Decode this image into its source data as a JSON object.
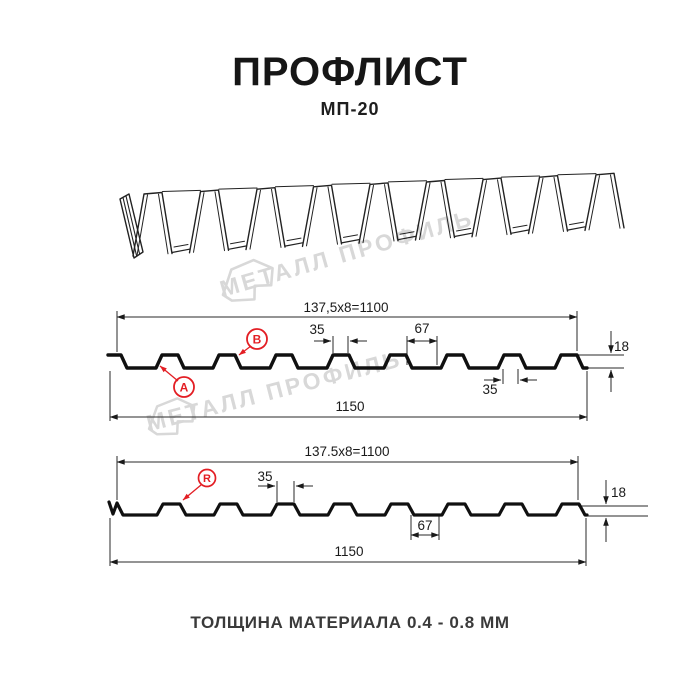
{
  "header": {
    "title": "ПРОФЛИСТ",
    "subtitle": "МП-20"
  },
  "footer": {
    "text": "ТОЛЩИНА МАТЕРИАЛА 0.4 - 0.8 ММ"
  },
  "watermark": {
    "text": "МЕТАЛЛ ПРОФИЛЬ"
  },
  "colors": {
    "accent_red": "#e31e24",
    "line_color": "#1a1a1a",
    "watermark_gray": "#d8d8d8"
  },
  "section_a": {
    "dim_pitch": "137,5x8=1100",
    "dim_rib_top": "35",
    "dim_valley": "67",
    "dim_height": "18",
    "dim_rib_top_lower": "35",
    "dim_overall": "1150",
    "marker_a": "A",
    "marker_b": "B"
  },
  "section_r": {
    "dim_pitch": "137.5x8=1100",
    "dim_rib_top": "35",
    "dim_valley": "67",
    "dim_height": "18",
    "dim_overall": "1150",
    "marker_r": "R"
  }
}
